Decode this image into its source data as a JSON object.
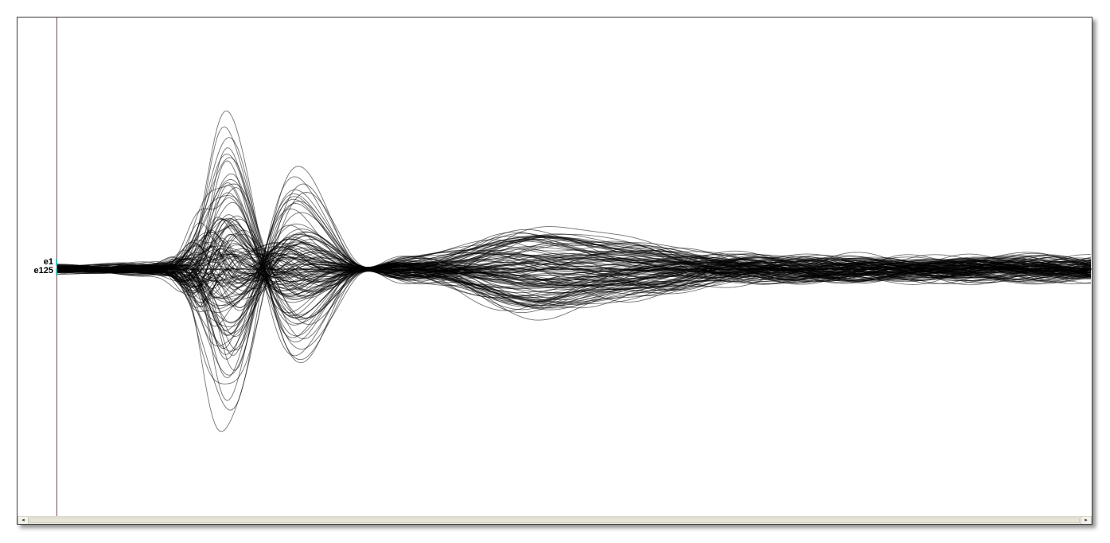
{
  "channels": {
    "first_label": "e1",
    "last_label": "e125",
    "count": 125
  },
  "colors": {
    "trace": "#000000",
    "cursor_line": "#7a5050",
    "baseline": "#000000",
    "channel_marker": "#3fbfbf",
    "scrollbar_bg": "#f0efe6"
  },
  "icons": {
    "scroll_left": "◂",
    "scroll_right": "▸"
  }
}
